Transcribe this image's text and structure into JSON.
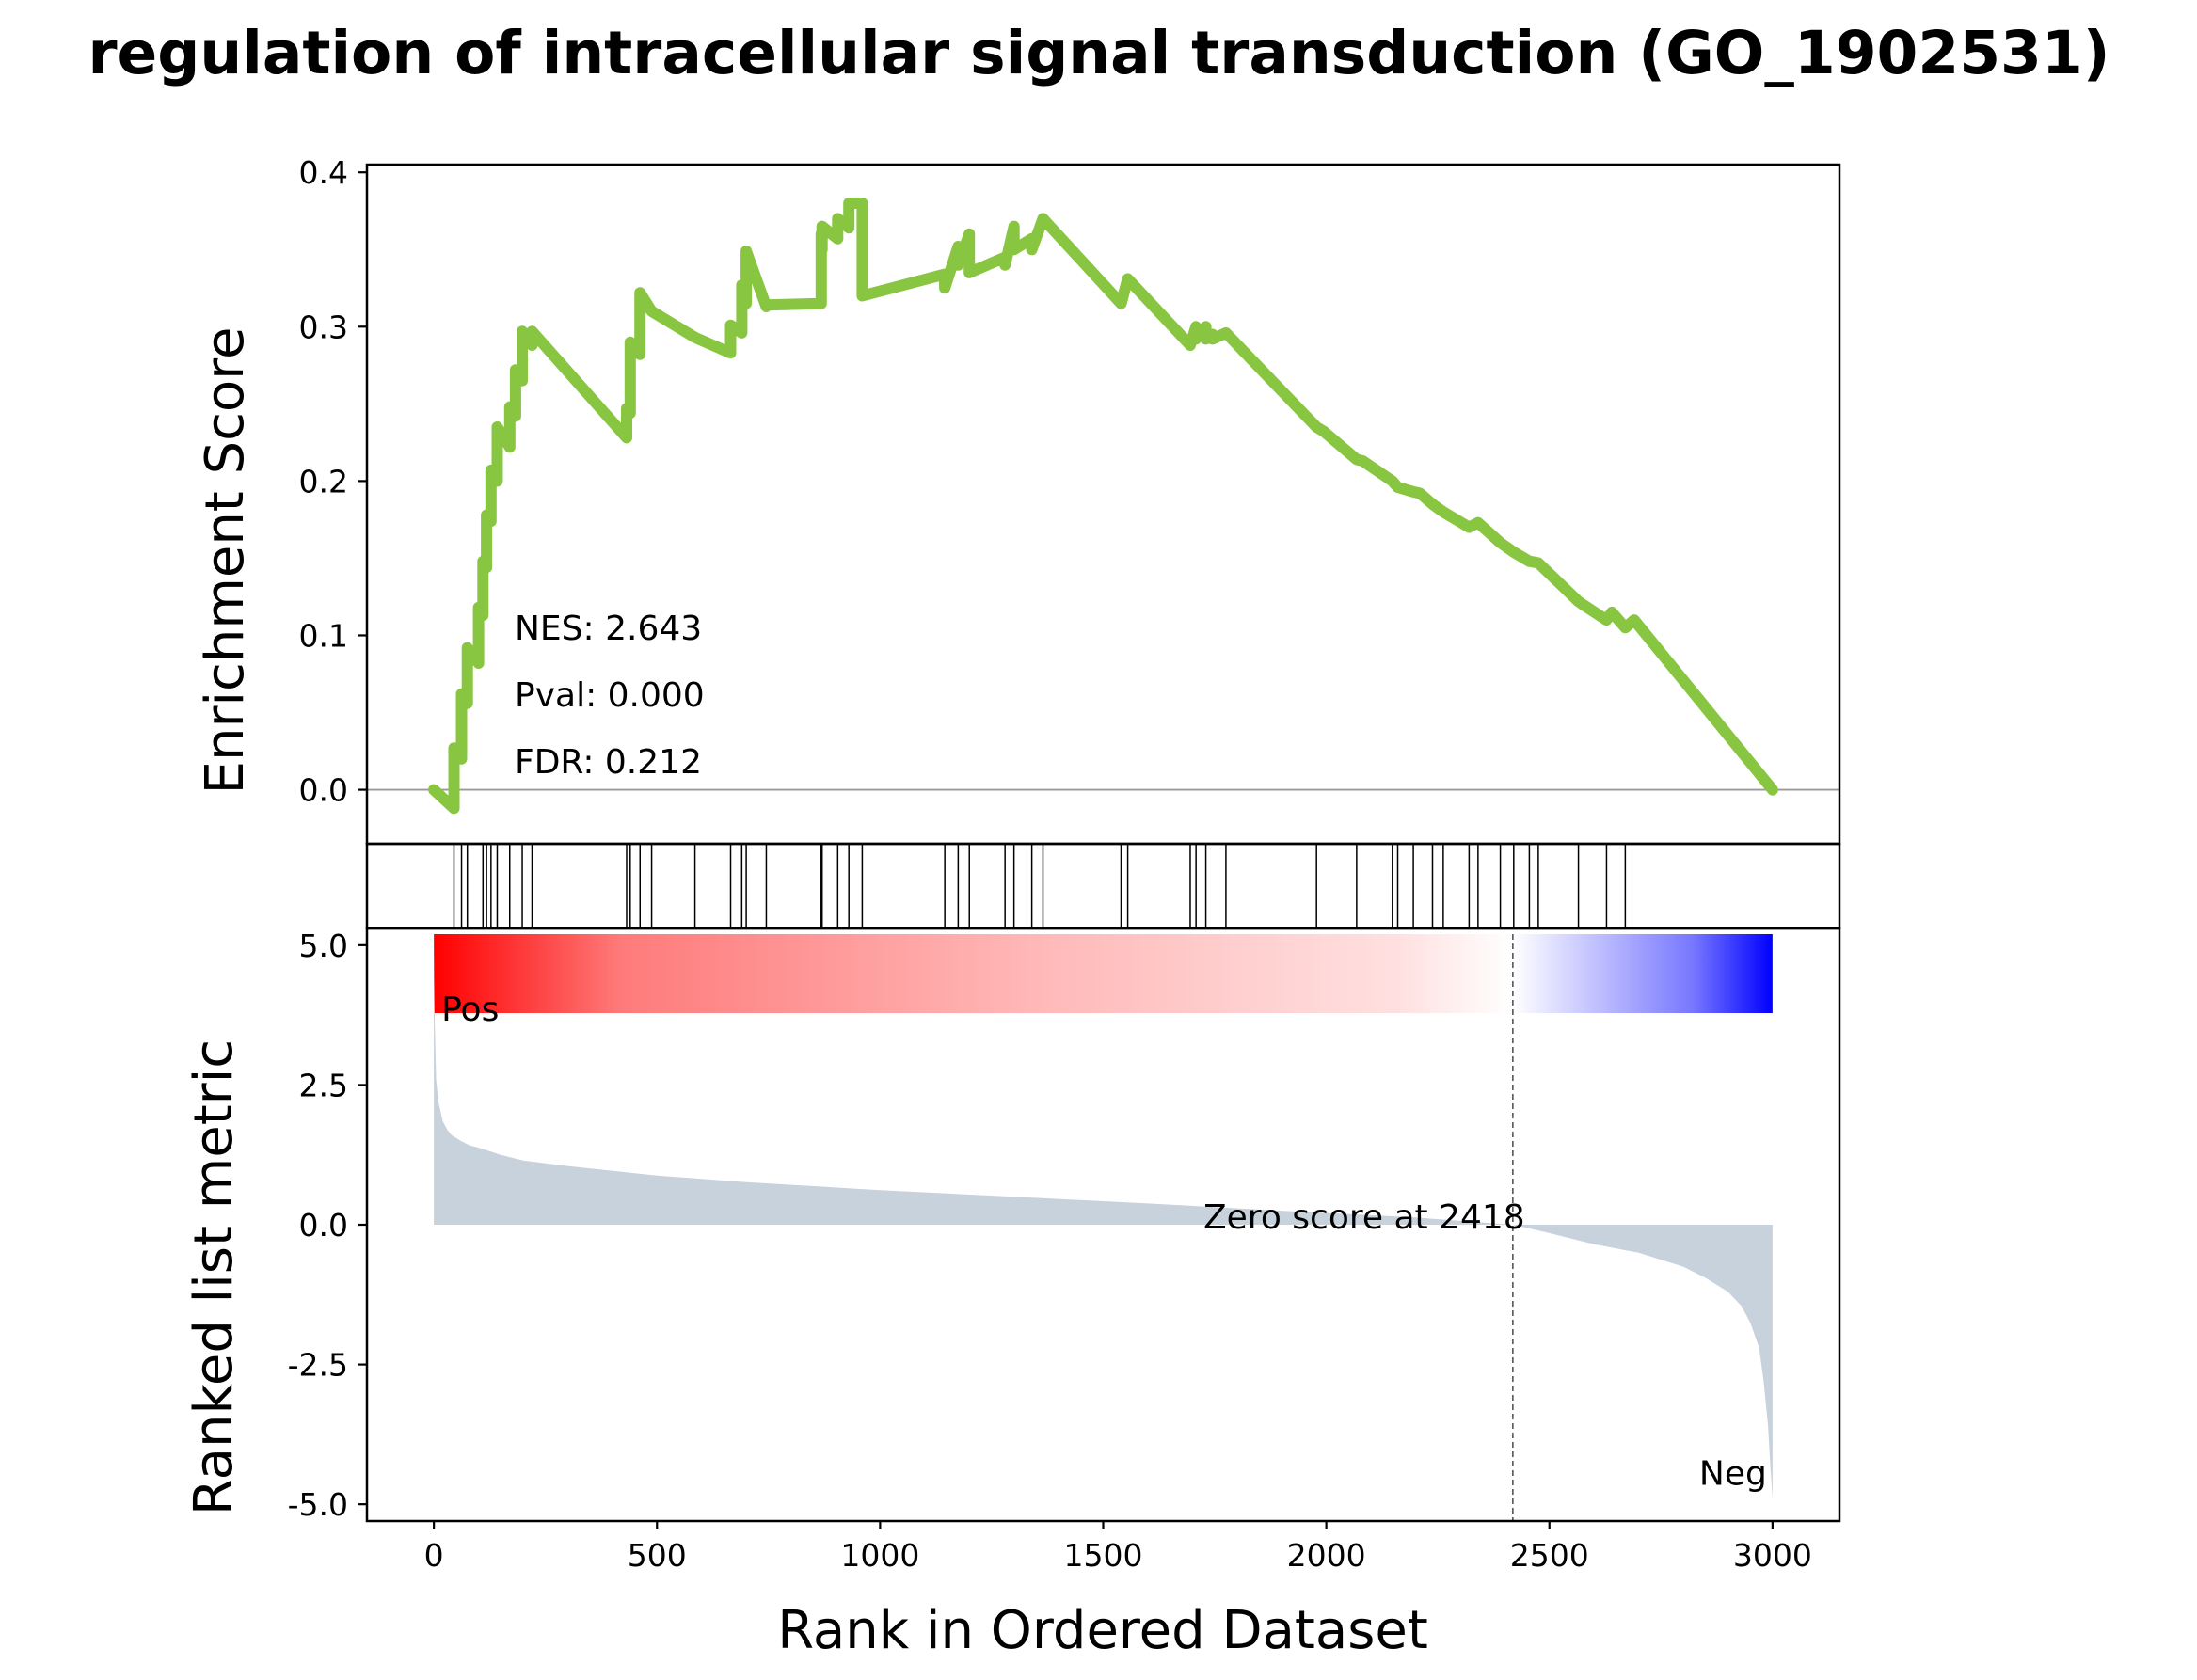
{
  "chart_data": {
    "type": "line",
    "title": "regulation of intracellular signal transduction (GO_1902531)",
    "xlabel": "Rank in Ordered Dataset",
    "xlim": [
      -150,
      3150
    ],
    "xticks": [
      0,
      500,
      1000,
      1500,
      2000,
      2500,
      3000
    ],
    "xtick_labels": [
      "0",
      "500",
      "1000",
      "1500",
      "2000",
      "2500",
      "3000"
    ],
    "grid": false,
    "enrichment": {
      "ylabel": "Enrichment Score",
      "ylim": [
        -0.035,
        0.405
      ],
      "yticks": [
        0.0,
        0.1,
        0.2,
        0.3,
        0.4
      ],
      "ytick_labels": [
        "0.0",
        "0.1",
        "0.2",
        "0.3",
        "0.4"
      ],
      "line_color": "#88c540",
      "zero_line_color": "#999999",
      "stats": [
        "NES: 2.643",
        "Pval: 0.000",
        "FDR: 0.212"
      ],
      "series": {
        "x": [
          0,
          45,
          45,
          62,
          62,
          75,
          75,
          100,
          100,
          110,
          110,
          118,
          118,
          128,
          128,
          142,
          142,
          170,
          170,
          183,
          183,
          198,
          198,
          220,
          220,
          432,
          432,
          440,
          440,
          462,
          462,
          488,
          488,
          585,
          585,
          665,
          665,
          690,
          690,
          700,
          700,
          745,
          745,
          868,
          868,
          870,
          870,
          905,
          905,
          930,
          930,
          960,
          960,
          1145,
          1145,
          1175,
          1175,
          1200,
          1200,
          1280,
          1280,
          1300,
          1300,
          1340,
          1340,
          1365,
          1365,
          1540,
          1540,
          1555,
          1555,
          1695,
          1695,
          1708,
          1708,
          1730,
          1730,
          1745,
          1745,
          1775,
          1775,
          1978,
          1978,
          1995,
          1995,
          2068,
          2068,
          2082,
          2082,
          2148,
          2148,
          2160,
          2160,
          2195,
          2195,
          2210,
          2210,
          2238,
          2238,
          2262,
          2262,
          2320,
          2320,
          2340,
          2340,
          2390,
          2390,
          2420,
          2420,
          2455,
          2455,
          2475,
          2475,
          2565,
          2565,
          2575,
          2575,
          2628,
          2628,
          2640,
          2640,
          2670,
          2670,
          2690,
          2690,
          3000
        ],
        "y": [
          0.0,
          -0.012,
          0.027,
          0.02,
          0.062,
          0.056,
          0.092,
          0.082,
          0.118,
          0.113,
          0.148,
          0.144,
          0.178,
          0.174,
          0.207,
          0.2,
          0.235,
          0.222,
          0.248,
          0.242,
          0.272,
          0.265,
          0.297,
          0.288,
          0.297,
          0.228,
          0.247,
          0.244,
          0.29,
          0.282,
          0.322,
          0.31,
          0.31,
          0.293,
          0.293,
          0.283,
          0.301,
          0.296,
          0.327,
          0.315,
          0.349,
          0.313,
          0.314,
          0.315,
          0.36,
          0.35,
          0.365,
          0.357,
          0.37,
          0.364,
          0.38,
          0.38,
          0.32,
          0.334,
          0.325,
          0.352,
          0.34,
          0.36,
          0.335,
          0.345,
          0.34,
          0.365,
          0.35,
          0.357,
          0.35,
          0.37,
          0.37,
          0.315,
          0.315,
          0.331,
          0.331,
          0.288,
          0.288,
          0.3,
          0.292,
          0.3,
          0.292,
          0.295,
          0.292,
          0.296,
          0.296,
          0.235,
          0.235,
          0.232,
          0.232,
          0.214,
          0.214,
          0.213,
          0.213,
          0.2,
          0.2,
          0.196,
          0.196,
          0.193,
          0.193,
          0.192,
          0.192,
          0.185,
          0.185,
          0.18,
          0.18,
          0.17,
          0.17,
          0.173,
          0.173,
          0.16,
          0.16,
          0.154,
          0.154,
          0.148,
          0.148,
          0.147,
          0.147,
          0.122,
          0.122,
          0.12,
          0.12,
          0.11,
          0.11,
          0.115,
          0.115,
          0.105,
          0.105,
          0.11,
          0.11,
          0.0
        ]
      }
    },
    "hits": [
      45,
      62,
      75,
      110,
      118,
      128,
      142,
      170,
      198,
      220,
      432,
      440,
      462,
      488,
      585,
      665,
      690,
      700,
      745,
      868,
      870,
      905,
      930,
      960,
      1145,
      1175,
      1200,
      1280,
      1300,
      1340,
      1365,
      1540,
      1555,
      1695,
      1708,
      1730,
      1775,
      1978,
      2068,
      2148,
      2160,
      2195,
      2238,
      2262,
      2320,
      2340,
      2390,
      2420,
      2455,
      2475,
      2565,
      2628,
      2670
    ],
    "colorbar": {
      "stops": [
        "#ff0000",
        "#fe7b7b",
        "#ffb8b8",
        "#ffe0e0",
        "#ffffff",
        "#c8c8ff",
        "#7878ff",
        "#0000ff"
      ]
    },
    "ranked_metric": {
      "ylabel": "Ranked list metric",
      "ylim": [
        -5.3,
        5.3
      ],
      "yticks": [
        5.0,
        2.5,
        0.0,
        -2.5,
        -5.0
      ],
      "ytick_labels": [
        "5.0",
        "2.5",
        "0.0",
        "-2.5",
        "-5.0"
      ],
      "fill_color": "#c8d2dc",
      "pos_label": "Pos",
      "neg_label": "Neg",
      "pos_color": "#ff0000",
      "neg_color": "#0000ff",
      "zero_cross": 2418,
      "zero_label": "Zero score at 2418",
      "x": [
        0,
        2,
        5,
        10,
        20,
        30,
        40,
        60,
        80,
        100,
        150,
        200,
        300,
        500,
        700,
        1000,
        1300,
        1600,
        1900,
        2200,
        2418,
        2500,
        2600,
        2700,
        2800,
        2850,
        2900,
        2930,
        2950,
        2970,
        2980,
        2990,
        2995,
        3000
      ],
      "y": [
        4.95,
        3.6,
        2.6,
        2.2,
        1.85,
        1.7,
        1.6,
        1.5,
        1.42,
        1.38,
        1.25,
        1.15,
        1.05,
        0.88,
        0.76,
        0.62,
        0.5,
        0.38,
        0.25,
        0.13,
        0.0,
        -0.15,
        -0.35,
        -0.5,
        -0.75,
        -0.95,
        -1.2,
        -1.45,
        -1.75,
        -2.2,
        -2.8,
        -3.6,
        -4.3,
        -4.9
      ]
    }
  }
}
